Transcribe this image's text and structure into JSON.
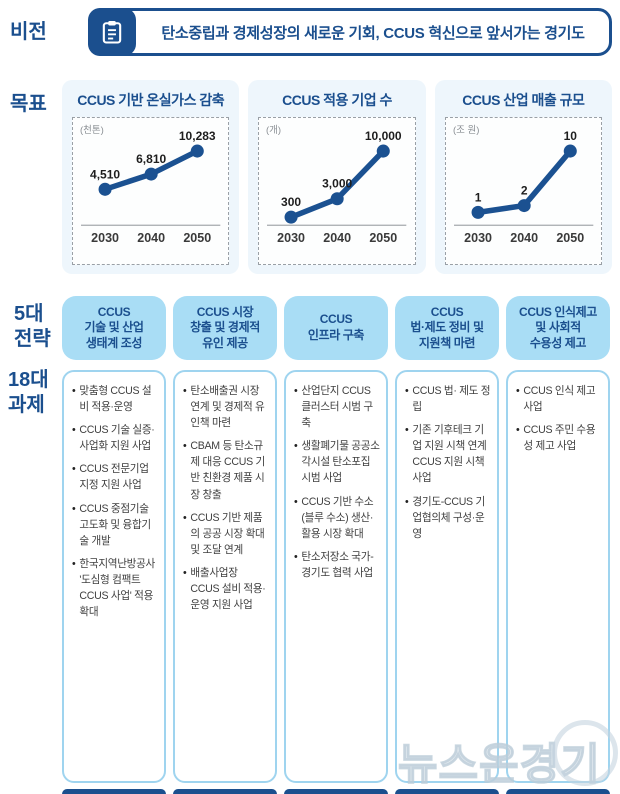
{
  "colors": {
    "navy": "#1b4f8e",
    "chart_line": "#1b5191",
    "header_bg": "#a9ddf5",
    "column_border": "#9fd4ef",
    "card_bg": "#eef6fc",
    "body_text": "#3f3f3f"
  },
  "vision": {
    "label": "비전",
    "icon": "clipboard-icon",
    "text": "탄소중립과 경제성장의 새로운 기회, CCUS 혁신으로 앞서가는 경기도"
  },
  "goals": {
    "label": "목표"
  },
  "chart_data": [
    {
      "type": "line",
      "title": "CCUS 기반 온실가스 감축",
      "unit": "(천톤)",
      "x": [
        "2030",
        "2040",
        "2050"
      ],
      "values": [
        4510,
        6810,
        10283
      ],
      "value_labels": [
        "4,510",
        "6,810",
        "10,283"
      ],
      "ylim": [
        0,
        10283
      ],
      "grid": false,
      "legend": "none"
    },
    {
      "type": "line",
      "title": "CCUS 적용 기업 수",
      "unit": "(개)",
      "x": [
        "2030",
        "2040",
        "2050"
      ],
      "values": [
        300,
        3000,
        10000
      ],
      "value_labels": [
        "300",
        "3,000",
        "10,000"
      ],
      "ylim": [
        0,
        10000
      ],
      "grid": false,
      "legend": "none"
    },
    {
      "type": "line",
      "title": "CCUS 산업 매출 규모",
      "unit": "(조 원)",
      "x": [
        "2030",
        "2040",
        "2050"
      ],
      "values": [
        1,
        2,
        10
      ],
      "value_labels": [
        "1",
        "2",
        "10"
      ],
      "ylim": [
        0,
        10
      ],
      "grid": false,
      "legend": "none"
    }
  ],
  "strategies": {
    "label_5": "5대\n전략",
    "label_18": "18대\n과제",
    "columns": [
      {
        "header": "CCUS\n기술 및 산업\n생태계 조성",
        "items": [
          "맞춤형 CCUS 설비 적용·운영",
          "CCUS 기술 실증·사업화 지원 사업",
          "CCUS 전문기업 지정 지원 사업",
          "CCUS 중점기술 고도화 및 융합기술 개발",
          "한국지역난방공사 '도심형 컴팩트 CCUS 사업' 적용 확대"
        ]
      },
      {
        "header": "CCUS 시장\n창출 및 경제적\n유인 제공",
        "items": [
          "탄소배출권 시장 연계 및 경제적 유인책 마련",
          "CBAM 등 탄소규제 대응 CCUS 기반 친환경 제품 시장 창출",
          "CCUS 기반 제품의 공공 시장 확대 및 조달 연계",
          "배출사업장 CCUS 설비 적용·운영 지원 사업"
        ]
      },
      {
        "header": "CCUS\n인프라 구축",
        "items": [
          "산업단지 CCUS 클러스터 시범 구축",
          "생활폐기물 공공소각시설 탄소포집 시범 사업",
          "CCUS 기반 수소(블루 수소) 생산·활용 시장 확대",
          "탄소저장소 국가-경기도 협력 사업"
        ]
      },
      {
        "header": "CCUS\n법·제도 정비 및\n지원책 마련",
        "items": [
          "CCUS 법· 제도 정립",
          "기존 기후테크 기업 지원 시책 연계 CCUS 지원 시책 사업",
          "경기도-CCUS 기업협의체 구성·운영"
        ]
      },
      {
        "header": "CCUS 인식제고\n및 사회적\n수용성 제고",
        "items": [
          "CCUS 인식 제고 사업",
          "CCUS 주민 수용성 제고 사업"
        ]
      }
    ]
  },
  "watermark": {
    "text": "뉴스온경기"
  }
}
